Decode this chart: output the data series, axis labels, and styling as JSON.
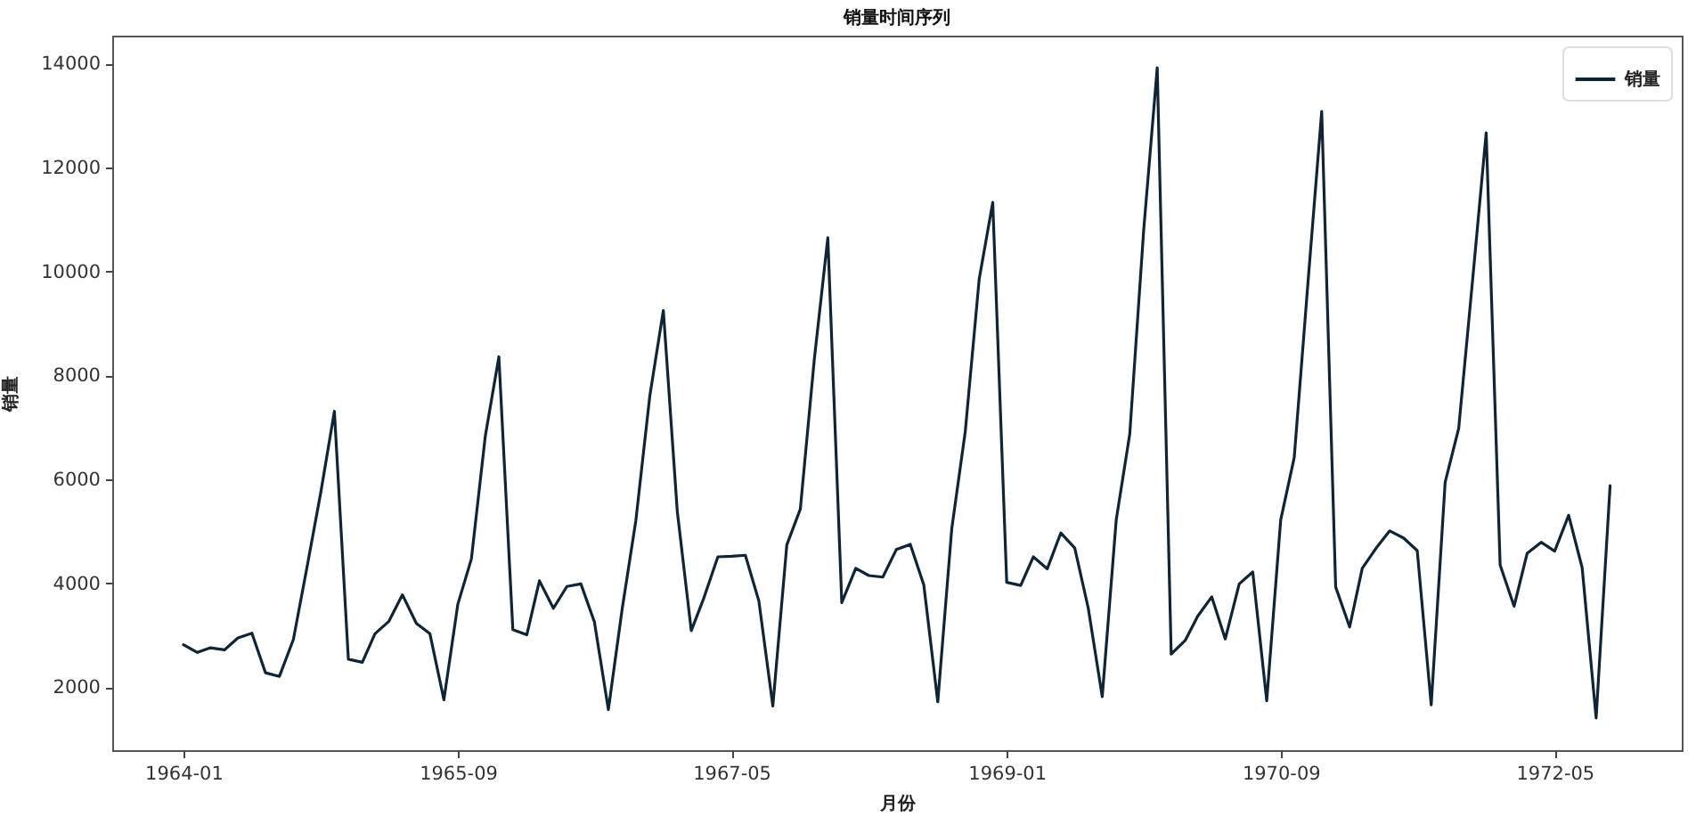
{
  "chart_data": {
    "type": "line",
    "title": "销量时间序列",
    "xlabel": "月份",
    "ylabel": "销量",
    "x": [
      "1964-01",
      "1964-02",
      "1964-03",
      "1964-04",
      "1964-05",
      "1964-06",
      "1964-07",
      "1964-08",
      "1964-09",
      "1964-10",
      "1964-11",
      "1964-12",
      "1965-01",
      "1965-02",
      "1965-03",
      "1965-04",
      "1965-05",
      "1965-06",
      "1965-07",
      "1965-08",
      "1965-09",
      "1965-10",
      "1965-11",
      "1965-12",
      "1966-01",
      "1966-02",
      "1966-03",
      "1966-04",
      "1966-05",
      "1966-06",
      "1966-07",
      "1966-08",
      "1966-09",
      "1966-10",
      "1966-11",
      "1966-12",
      "1967-01",
      "1967-02",
      "1967-03",
      "1967-04",
      "1967-05",
      "1967-06",
      "1967-07",
      "1967-08",
      "1967-09",
      "1967-10",
      "1967-11",
      "1967-12",
      "1968-01",
      "1968-02",
      "1968-03",
      "1968-04",
      "1968-05",
      "1968-06",
      "1968-07",
      "1968-08",
      "1968-09",
      "1968-10",
      "1968-11",
      "1968-12",
      "1969-01",
      "1969-02",
      "1969-03",
      "1969-04",
      "1969-05",
      "1969-06",
      "1969-07",
      "1969-08",
      "1969-09",
      "1969-10",
      "1969-11",
      "1969-12",
      "1970-01",
      "1970-02",
      "1970-03",
      "1970-04",
      "1970-05",
      "1970-06",
      "1970-07",
      "1970-08",
      "1970-09",
      "1970-10",
      "1970-11",
      "1970-12",
      "1971-01",
      "1971-02",
      "1971-03",
      "1971-04",
      "1971-05",
      "1971-06",
      "1971-07",
      "1971-08",
      "1971-09",
      "1971-10",
      "1971-11",
      "1971-12",
      "1972-01",
      "1972-02",
      "1972-03",
      "1972-04",
      "1972-05",
      "1972-06",
      "1972-07",
      "1972-08",
      "1972-09"
    ],
    "series": [
      {
        "name": "销量",
        "color": "#0f2536",
        "values": [
          2820,
          2670,
          2760,
          2720,
          2950,
          3040,
          2280,
          2210,
          2920,
          4300,
          5760,
          7310,
          2540,
          2480,
          3030,
          3270,
          3780,
          3230,
          3030,
          1760,
          3600,
          4470,
          6840,
          8360,
          3110,
          3010,
          4050,
          3520,
          3940,
          3990,
          3260,
          1570,
          3530,
          5210,
          7610,
          9250,
          5380,
          3090,
          3720,
          4510,
          4520,
          4540,
          3660,
          1640,
          4740,
          5430,
          8310,
          10650,
          3630,
          4290,
          4150,
          4120,
          4650,
          4750,
          3970,
          1720,
          5050,
          6920,
          9860,
          11330,
          4020,
          3960,
          4510,
          4280,
          4970,
          4680,
          3520,
          1820,
          5220,
          6870,
          10800,
          13920,
          2640,
          2900,
          3370,
          3740,
          2930,
          3990,
          4220,
          1740,
          5220,
          6420,
          9840,
          13080,
          3930,
          3160,
          4290,
          4680,
          5010,
          4870,
          4630,
          1660,
          5950,
          6980,
          9850,
          12670,
          4350,
          3560,
          4580,
          4790,
          4620,
          5310,
          4300,
          1410,
          5880
        ]
      }
    ],
    "xlim": [
      "1963-07-27",
      "1973-02-07"
    ],
    "xticks": [
      "1964-01",
      "1965-09",
      "1967-05",
      "1969-01",
      "1970-09",
      "1972-05"
    ],
    "ylim": [
      790,
      14540
    ],
    "yticks": [
      2000,
      4000,
      6000,
      8000,
      10000,
      12000,
      14000
    ],
    "grid": false,
    "legend": "top right"
  }
}
